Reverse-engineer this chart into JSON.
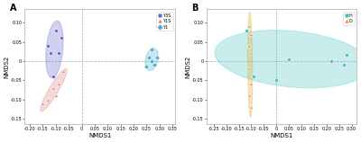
{
  "panel_A": {
    "label": "A",
    "groups": {
      "Y3S": {
        "color": "#6666CC",
        "marker": "o",
        "points": [
          [
            -0.1,
            0.08
          ],
          [
            -0.08,
            0.06
          ],
          [
            -0.13,
            0.04
          ],
          [
            -0.09,
            0.02
          ],
          [
            -0.12,
            0.02
          ],
          [
            -0.11,
            -0.04
          ]
        ]
      },
      "Y1S": {
        "color": "#E08080",
        "marker": "^",
        "points": [
          [
            -0.07,
            -0.025
          ],
          [
            -0.09,
            -0.06
          ],
          [
            -0.11,
            -0.07
          ],
          [
            -0.1,
            -0.09
          ],
          [
            -0.13,
            -0.1
          ],
          [
            -0.15,
            -0.11
          ]
        ]
      },
      "Y1": {
        "color": "#4AAFCF",
        "marker": "D",
        "points": [
          [
            0.26,
            0.01
          ],
          [
            0.27,
            0.03
          ],
          [
            0.28,
            -0.01
          ],
          [
            0.27,
            0.0
          ],
          [
            0.25,
            -0.015
          ],
          [
            0.29,
            0.01
          ]
        ]
      }
    },
    "ellipse_alpha": 0.3,
    "xlabel": "NMDS1",
    "ylabel": "NMDS2",
    "xlim": [
      -0.22,
      0.36
    ],
    "ylim": [
      -0.165,
      0.135
    ],
    "xticks": [
      -0.2,
      -0.15,
      -0.1,
      -0.05,
      0.0,
      0.05,
      0.1,
      0.15,
      0.2,
      0.25,
      0.3,
      0.35
    ],
    "yticks": [
      -0.15,
      -0.1,
      -0.05,
      0.0,
      0.05,
      0.1
    ]
  },
  "panel_B": {
    "label": "B",
    "groups": {
      "H": {
        "color": "#40C0C0",
        "marker": "o",
        "points": [
          [
            -0.12,
            0.08
          ],
          [
            -0.11,
            0.04
          ],
          [
            -0.09,
            -0.04
          ],
          [
            0.0,
            -0.05
          ],
          [
            0.22,
            0.0
          ],
          [
            0.27,
            -0.01
          ],
          [
            0.28,
            0.015
          ],
          [
            0.05,
            0.005
          ]
        ]
      },
      "D": {
        "color": "#E0A020",
        "marker": "^",
        "points": [
          [
            -0.11,
            0.09
          ],
          [
            -0.1,
            0.07
          ],
          [
            -0.11,
            0.04
          ],
          [
            -0.1,
            0.02
          ],
          [
            -0.11,
            -0.02
          ],
          [
            -0.1,
            -0.06
          ],
          [
            -0.11,
            -0.09
          ],
          [
            -0.1,
            -0.12
          ]
        ]
      }
    },
    "ellipse_alpha": 0.28,
    "xlabel": "NMDS1",
    "ylabel": "NMDS2",
    "xlim": [
      -0.28,
      0.32
    ],
    "ylim": [
      -0.165,
      0.135
    ],
    "xticks": [
      -0.25,
      -0.2,
      -0.15,
      -0.1,
      -0.05,
      0.0,
      0.05,
      0.1,
      0.15,
      0.2,
      0.25,
      0.3
    ],
    "yticks": [
      -0.15,
      -0.1,
      -0.05,
      0.0,
      0.05,
      0.1
    ]
  },
  "background_color": "#FFFFFF",
  "grid_color": "#DDDDDD"
}
